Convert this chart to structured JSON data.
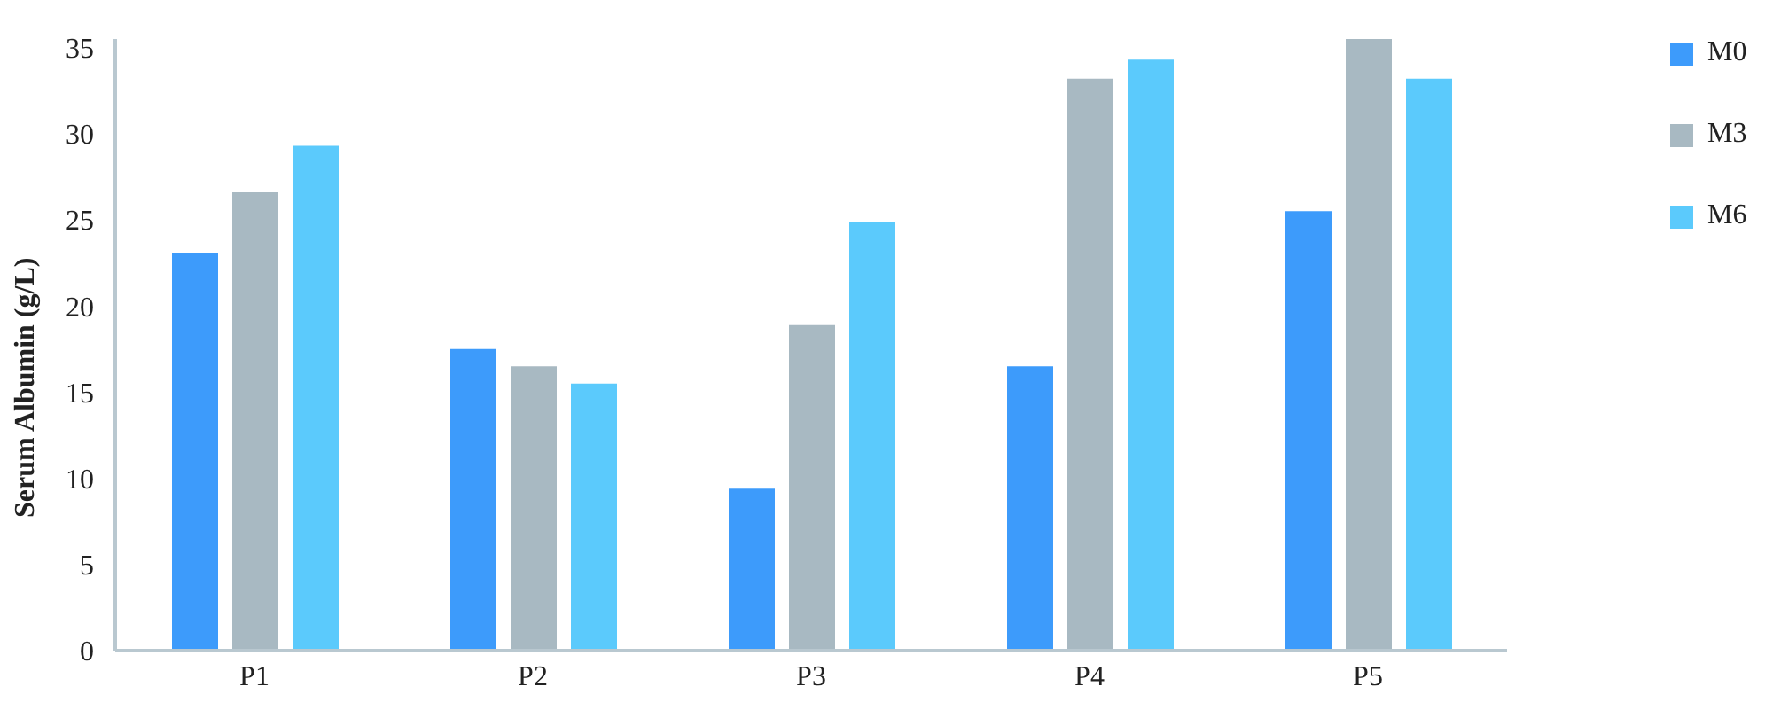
{
  "chart_data": {
    "type": "bar",
    "ylabel": "Serum Albumin (g/L)",
    "categories": [
      "P1",
      "P2",
      "P3",
      "P4",
      "P5"
    ],
    "series": [
      {
        "name": "M0",
        "color": "#3d9bfb",
        "values": [
          23.1,
          17.5,
          9.4,
          16.5,
          25.5
        ]
      },
      {
        "name": "M3",
        "color": "#a8b9c2",
        "values": [
          26.6,
          16.5,
          18.9,
          33.2,
          35.5
        ]
      },
      {
        "name": "M6",
        "color": "#5bcafc",
        "values": [
          29.3,
          15.5,
          24.9,
          34.3,
          33.2
        ]
      }
    ],
    "ylim": [
      0,
      35.5
    ],
    "yticks": [
      0,
      5,
      10,
      15,
      20,
      25,
      30,
      35
    ],
    "legend": "top right"
  }
}
